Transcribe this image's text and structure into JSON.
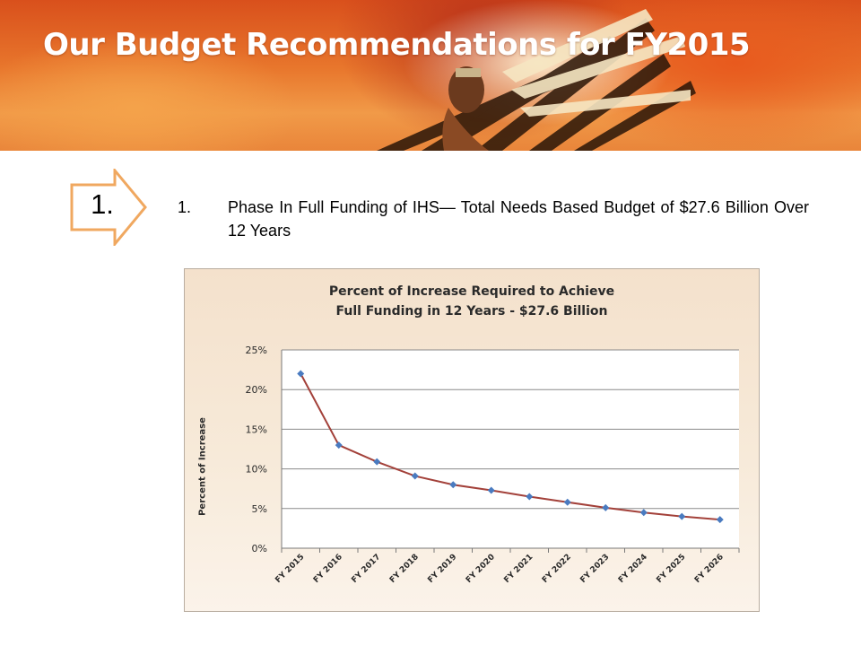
{
  "slide": {
    "title": "Our Budget Recommendations for FY2015"
  },
  "step": {
    "number": "1."
  },
  "recommendation": {
    "number": "1.",
    "text": "Phase In Full Funding of IHS— Total Needs Based Budget of $27.6 Billion Over 12 Years"
  },
  "colors": {
    "line": "#a3413a",
    "marker": "#4a7bc0",
    "arrow_stroke": "#f0a860",
    "grid": "#8a8a8a"
  },
  "chart_data": {
    "type": "line",
    "title_lines": [
      "Percent of Increase Required to Achieve",
      "Full Funding in 12 Years - $27.6 Billion"
    ],
    "ylabel": "Percent of Increase",
    "xlabel": "",
    "categories": [
      "FY 2015",
      "FY 2016",
      "FY 2017",
      "FY 2018",
      "FY 2019",
      "FY 2020",
      "FY 2021",
      "FY 2022",
      "FY 2023",
      "FY 2024",
      "FY 2025",
      "FY 2026"
    ],
    "values": [
      22.0,
      13.0,
      10.9,
      9.1,
      8.0,
      7.3,
      6.5,
      5.8,
      5.1,
      4.5,
      4.0,
      3.6
    ],
    "ylim": [
      0,
      25
    ],
    "yticks": [
      0,
      5,
      10,
      15,
      20,
      25
    ],
    "ytick_labels": [
      "0%",
      "5%",
      "10%",
      "15%",
      "20%",
      "25%"
    ],
    "grid": "horizontal",
    "legend": "none"
  }
}
